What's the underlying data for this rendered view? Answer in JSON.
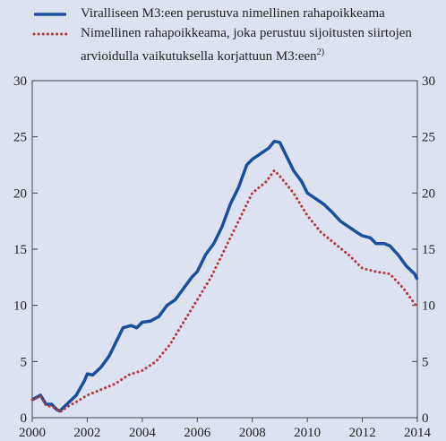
{
  "chart_data": {
    "type": "line",
    "xlim": [
      2000,
      2014
    ],
    "xticks": [
      2000,
      2002,
      2004,
      2006,
      2008,
      2010,
      2012,
      2014
    ],
    "ylim": [
      0,
      30
    ],
    "yticks": [
      0,
      5,
      10,
      15,
      20,
      25,
      30
    ],
    "y2lim": [
      0,
      30
    ],
    "y2ticks": [
      0,
      5,
      10,
      15,
      20,
      25,
      30
    ],
    "grid": false,
    "series": [
      {
        "name": "Viralliseen M3:een perustuva nimellinen rahapoikkeama",
        "color": "#1a4f9c",
        "style": "solid",
        "x": [
          2000.0,
          2000.3,
          2000.5,
          2000.7,
          2000.9,
          2001.0,
          2001.3,
          2001.6,
          2001.9,
          2002.0,
          2002.2,
          2002.5,
          2002.8,
          2003.0,
          2003.3,
          2003.6,
          2003.8,
          2004.0,
          2004.3,
          2004.6,
          2004.9,
          2005.2,
          2005.5,
          2005.8,
          2006.0,
          2006.3,
          2006.6,
          2006.9,
          2007.2,
          2007.5,
          2007.8,
          2008.0,
          2008.3,
          2008.6,
          2008.8,
          2009.0,
          2009.2,
          2009.5,
          2009.8,
          2010.0,
          2010.3,
          2010.6,
          2010.9,
          2011.2,
          2011.5,
          2011.8,
          2012.0,
          2012.3,
          2012.5,
          2012.8,
          2013.0,
          2013.3,
          2013.6,
          2013.9,
          2014.0
        ],
        "values": [
          1.6,
          2.0,
          1.2,
          1.2,
          0.7,
          0.6,
          1.3,
          2.0,
          3.3,
          3.9,
          3.8,
          4.5,
          5.5,
          6.5,
          8.0,
          8.2,
          8.0,
          8.5,
          8.6,
          9.0,
          10.0,
          10.5,
          11.5,
          12.5,
          13.0,
          14.5,
          15.5,
          17.0,
          19.0,
          20.5,
          22.5,
          23.0,
          23.5,
          24.0,
          24.6,
          24.5,
          23.5,
          22.0,
          21.0,
          20.0,
          19.5,
          19.0,
          18.3,
          17.5,
          17.0,
          16.5,
          16.2,
          16.0,
          15.5,
          15.5,
          15.3,
          14.5,
          13.5,
          12.8,
          12.3
        ]
      },
      {
        "name": "Nimellinen rahapoikkeama, joka perustuu sijoitusten siirtojen arvioidulla vaikutuksella korjattuun M3:een",
        "name_footnote": "2)",
        "color": "#b03a3a",
        "style": "dotted",
        "x": [
          2000.0,
          2000.3,
          2000.5,
          2000.8,
          2001.0,
          2001.3,
          2001.6,
          2002.0,
          2002.5,
          2003.0,
          2003.5,
          2004.0,
          2004.5,
          2005.0,
          2005.5,
          2006.0,
          2006.5,
          2007.0,
          2007.5,
          2008.0,
          2008.5,
          2008.8,
          2009.0,
          2009.5,
          2010.0,
          2010.5,
          2011.0,
          2011.5,
          2012.0,
          2012.5,
          2013.0,
          2013.5,
          2014.0
        ],
        "values": [
          1.6,
          1.9,
          1.1,
          0.9,
          0.5,
          1.0,
          1.4,
          2.0,
          2.5,
          3.0,
          3.8,
          4.2,
          5.0,
          6.5,
          8.5,
          10.5,
          12.5,
          15.0,
          17.5,
          20.0,
          21.0,
          22.0,
          21.5,
          20.0,
          18.0,
          16.5,
          15.5,
          14.5,
          13.3,
          13.0,
          12.8,
          11.5,
          9.8
        ]
      }
    ]
  }
}
